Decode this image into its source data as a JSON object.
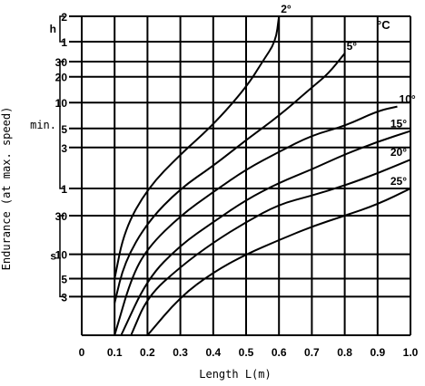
{
  "chart_data": {
    "type": "line",
    "xlabel": "Length L(m)",
    "ylabel": "Endurance (at max. speed)",
    "xlim": [
      0,
      1.0
    ],
    "x_ticks": [
      "0",
      "0.1",
      "0.2",
      "0.3",
      "0.4",
      "0.5",
      "0.6",
      "0.7",
      "0.8",
      "0.9",
      "1.0"
    ],
    "y_scale": "log",
    "y_unit_label": "°C",
    "y_sections": [
      {
        "unit": "h",
        "ticks": [
          {
            "label": "2",
            "seconds": 7200
          },
          {
            "label": "1",
            "seconds": 3600
          }
        ]
      },
      {
        "unit": "min.",
        "ticks": [
          {
            "label": "30",
            "seconds": 1800
          },
          {
            "label": "20",
            "seconds": 1200
          },
          {
            "label": "10",
            "seconds": 600
          },
          {
            "label": "5",
            "seconds": 300
          },
          {
            "label": "3",
            "seconds": 180
          },
          {
            "label": "1",
            "seconds": 60
          }
        ]
      },
      {
        "unit": "s",
        "ticks": [
          {
            "label": "30",
            "seconds": 30
          },
          {
            "label": "10",
            "seconds": 10
          },
          {
            "label": "5",
            "seconds": 5
          },
          {
            "label": "3",
            "seconds": 3
          }
        ]
      }
    ],
    "legend_unit": "°C",
    "series": [
      {
        "name": "2°",
        "points": [
          [
            0.1,
            5
          ],
          [
            0.13,
            20
          ],
          [
            0.2,
            60
          ],
          [
            0.3,
            150
          ],
          [
            0.4,
            330
          ],
          [
            0.5,
            900
          ],
          [
            0.55,
            1800
          ],
          [
            0.59,
            3600
          ],
          [
            0.6,
            7200
          ]
        ]
      },
      {
        "name": "5°",
        "points": [
          [
            0.1,
            2.5
          ],
          [
            0.13,
            8
          ],
          [
            0.2,
            25
          ],
          [
            0.3,
            60
          ],
          [
            0.4,
            110
          ],
          [
            0.5,
            220
          ],
          [
            0.6,
            420
          ],
          [
            0.7,
            900
          ],
          [
            0.75,
            1300
          ],
          [
            0.8,
            2400
          ]
        ]
      },
      {
        "name": "10°",
        "points": [
          [
            0.1,
            1
          ],
          [
            0.15,
            5
          ],
          [
            0.2,
            12
          ],
          [
            0.3,
            30
          ],
          [
            0.4,
            55
          ],
          [
            0.5,
            100
          ],
          [
            0.6,
            160
          ],
          [
            0.7,
            250
          ],
          [
            0.8,
            320
          ],
          [
            0.9,
            480
          ],
          [
            0.96,
            540
          ]
        ]
      },
      {
        "name": "15°",
        "points": [
          [
            0.12,
            1
          ],
          [
            0.2,
            5
          ],
          [
            0.3,
            13
          ],
          [
            0.4,
            25
          ],
          [
            0.5,
            45
          ],
          [
            0.6,
            70
          ],
          [
            0.7,
            100
          ],
          [
            0.8,
            150
          ],
          [
            0.9,
            210
          ],
          [
            1.0,
            280
          ]
        ]
      },
      {
        "name": "20°",
        "points": [
          [
            0.15,
            1
          ],
          [
            0.2,
            3
          ],
          [
            0.3,
            7
          ],
          [
            0.4,
            14
          ],
          [
            0.5,
            25
          ],
          [
            0.6,
            40
          ],
          [
            0.7,
            50
          ],
          [
            0.8,
            65
          ],
          [
            0.9,
            90
          ],
          [
            1.0,
            130
          ]
        ]
      },
      {
        "name": "25°",
        "points": [
          [
            0.2,
            1
          ],
          [
            0.3,
            3
          ],
          [
            0.4,
            6
          ],
          [
            0.5,
            10
          ],
          [
            0.6,
            15
          ],
          [
            0.7,
            22
          ],
          [
            0.8,
            30
          ],
          [
            0.9,
            40
          ],
          [
            1.0,
            60
          ]
        ]
      }
    ]
  }
}
